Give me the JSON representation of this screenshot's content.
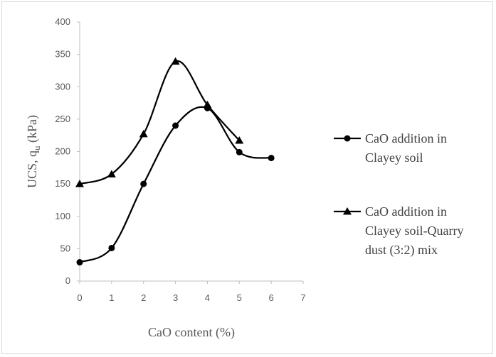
{
  "chart_data": {
    "type": "line",
    "title": "",
    "xlabel": "CaO content  (%)",
    "ylabel": "UCS, q",
    "ylabel_subscript": "u",
    "ylabel_suffix": " (kPa)",
    "xlim": [
      0,
      7
    ],
    "ylim": [
      0,
      400
    ],
    "xticks": [
      0,
      1,
      2,
      3,
      4,
      5,
      6,
      7
    ],
    "yticks": [
      0,
      50,
      100,
      150,
      200,
      250,
      300,
      350,
      400
    ],
    "grid": false,
    "legend_position": "right",
    "series": [
      {
        "name": "CaO addition in Clayey soil",
        "legend_lines": [
          "CaO addition in",
          "Clayey soil"
        ],
        "marker": "circle",
        "color": "#000000",
        "x": [
          0,
          1,
          2,
          3,
          4,
          5,
          6
        ],
        "y": [
          29,
          51,
          150,
          240,
          267,
          199,
          190
        ]
      },
      {
        "name": "CaO addition in Clayey soil-Quarry dust (3:2) mix",
        "legend_lines": [
          "CaO addition in",
          "Clayey soil-Quarry",
          "dust (3:2) mix"
        ],
        "marker": "triangle",
        "color": "#000000",
        "x": [
          0,
          1,
          2,
          3,
          4,
          5
        ],
        "y": [
          150,
          165,
          227,
          339,
          272,
          217
        ]
      }
    ]
  }
}
